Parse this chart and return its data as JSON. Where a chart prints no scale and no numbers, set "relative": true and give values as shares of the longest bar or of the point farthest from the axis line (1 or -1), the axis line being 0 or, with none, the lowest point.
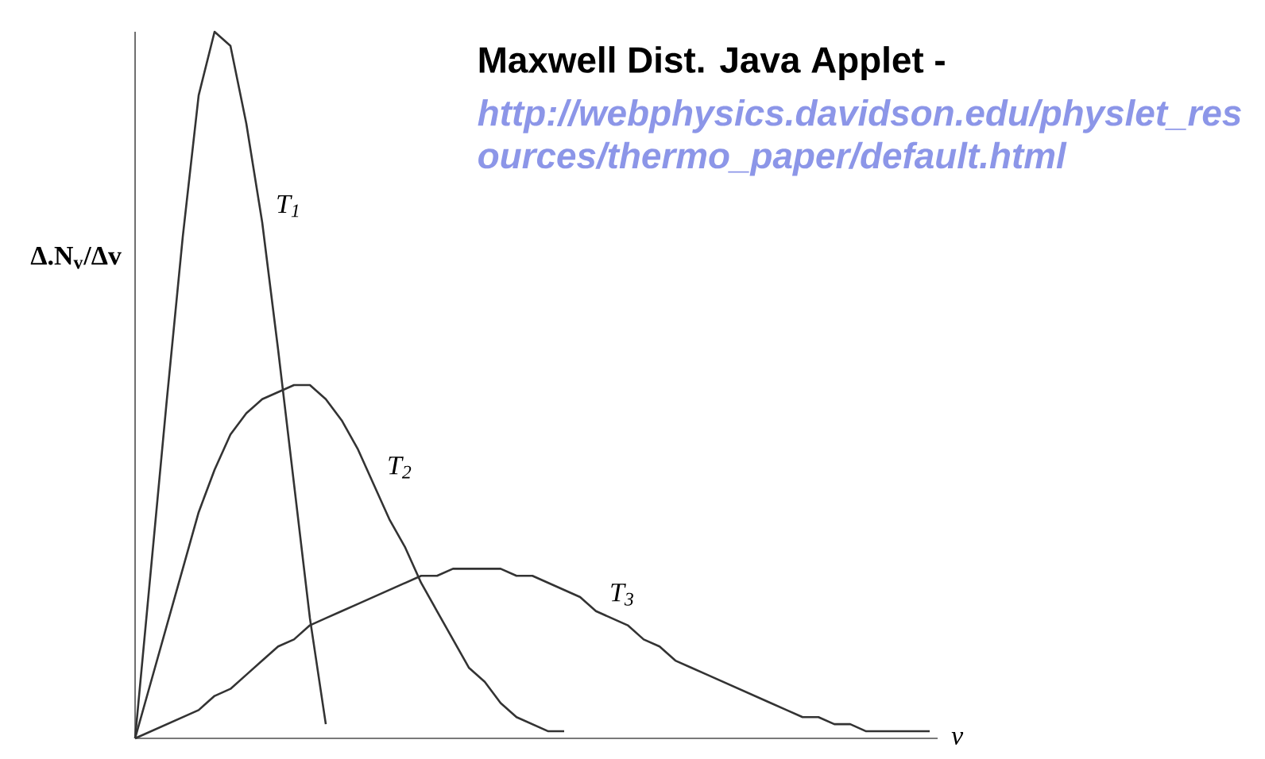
{
  "chart_data": {
    "type": "line",
    "relative": true,
    "title": "**Maxwell Dist. Java Applet -**",
    "annotations": [
      "*http://webphysics.davidson.edu/physlet_resources/thermo_paper/default.html*"
    ],
    "xlabel": "v",
    "ylabel": "Δ.N$_{v}$/Δv",
    "categories": [
      null,
      null,
      null,
      null,
      null,
      null,
      null,
      null,
      null,
      null,
      null,
      null,
      null,
      null,
      null,
      null,
      null,
      null,
      null,
      null,
      null,
      null,
      null,
      null,
      null,
      null,
      null,
      null,
      null,
      null,
      null,
      null,
      null,
      null,
      null,
      null,
      null,
      null,
      null,
      null,
      null,
      null,
      null,
      null,
      null,
      null,
      null,
      null,
      null,
      null,
      null
    ],
    "series": [
      {
        "name": "T$_{1}$",
        "color": "#333333",
        "values": [
          0,
          0.24,
          0.48,
          0.71,
          0.91,
          1,
          0.98,
          0.87,
          0.73,
          0.55,
          0.36,
          0.17,
          0.02,
          null,
          null,
          null,
          null,
          null,
          null,
          null,
          null,
          null,
          null,
          null,
          null,
          null,
          null,
          null,
          null,
          null,
          null,
          null,
          null,
          null,
          null,
          null,
          null,
          null,
          null,
          null,
          null,
          null,
          null,
          null,
          null,
          null,
          null,
          null,
          null,
          null,
          null
        ]
      },
      {
        "name": "T$_{2}$",
        "color": "#333333",
        "values": [
          0,
          0.08,
          0.16,
          0.24,
          0.32,
          0.38,
          0.43,
          0.46,
          0.48,
          0.49,
          0.5,
          0.5,
          0.48,
          0.45,
          0.41,
          0.36,
          0.31,
          0.27,
          0.22,
          0.18,
          0.14,
          0.1,
          0.08,
          0.05,
          0.03,
          0.02,
          0.01,
          0.01,
          null,
          null,
          null,
          null,
          null,
          null,
          null,
          null,
          null,
          null,
          null,
          null,
          null,
          null,
          null,
          null,
          null,
          null,
          null,
          null,
          null,
          null,
          null
        ]
      },
      {
        "name": "T$_{3}$",
        "color": "#333333",
        "values": [
          0,
          0.01,
          0.02,
          0.03,
          0.04,
          0.06,
          0.07,
          0.09,
          0.11,
          0.13,
          0.14,
          0.16,
          0.17,
          0.18,
          0.19,
          0.2,
          0.21,
          0.22,
          0.23,
          0.23,
          0.24,
          0.24,
          0.24,
          0.24,
          0.23,
          0.23,
          0.22,
          0.21,
          0.2,
          0.18,
          0.17,
          0.16,
          0.14,
          0.13,
          0.11,
          0.1,
          0.09,
          0.08,
          0.07,
          0.06,
          0.05,
          0.04,
          0.03,
          0.03,
          0.02,
          0.02,
          0.01,
          0.01,
          0.01,
          0.01,
          0.01
        ]
      }
    ],
    "marker": "none",
    "line_style": "solid"
  }
}
